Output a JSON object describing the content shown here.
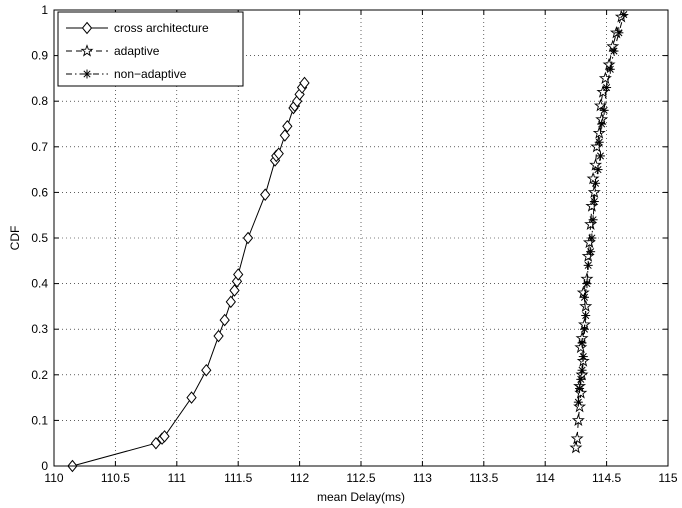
{
  "chart_data": {
    "type": "line",
    "title": "",
    "xlabel": "mean Delay(ms)",
    "ylabel": "CDF",
    "xlim": [
      110,
      115
    ],
    "ylim": [
      0,
      1
    ],
    "xticks": [
      110,
      110.5,
      111,
      111.5,
      112,
      112.5,
      113,
      113.5,
      114,
      114.5,
      115
    ],
    "xtick_labels": [
      "110",
      "110.5",
      "111",
      "111.5",
      "112",
      "112.5",
      "113",
      "113.5",
      "114",
      "114.5",
      "115"
    ],
    "yticks": [
      0,
      0.1,
      0.2,
      0.3,
      0.4,
      0.5,
      0.6,
      0.7,
      0.8,
      0.9,
      1
    ],
    "ytick_labels": [
      "0",
      "0.1",
      "0.2",
      "0.3",
      "0.4",
      "0.5",
      "0.6",
      "0.7",
      "0.8",
      "0.9",
      "1"
    ],
    "grid": true,
    "legend_position": "top-left",
    "series": [
      {
        "name": "cross architecture",
        "marker": "diamond",
        "line_style": "solid",
        "x": [
          110.15,
          110.83,
          110.88,
          110.9,
          111.12,
          111.24,
          111.34,
          111.39,
          111.44,
          111.47,
          111.49,
          111.5,
          111.58,
          111.72,
          111.8,
          111.81,
          111.83,
          111.88,
          111.9,
          111.95,
          111.96,
          111.98,
          112.0,
          112.02,
          112.04
        ],
        "y": [
          0.0,
          0.05,
          0.06,
          0.065,
          0.15,
          0.21,
          0.285,
          0.32,
          0.36,
          0.385,
          0.405,
          0.42,
          0.5,
          0.595,
          0.67,
          0.68,
          0.685,
          0.725,
          0.745,
          0.785,
          0.79,
          0.8,
          0.815,
          0.83,
          0.84
        ]
      },
      {
        "name": "adaptive",
        "marker": "star",
        "line_style": "dashed",
        "x": [
          114.25,
          114.26,
          114.27,
          114.28,
          114.29,
          114.28,
          114.3,
          114.31,
          114.29,
          114.3,
          114.32,
          114.33,
          114.31,
          114.34,
          114.35,
          114.36,
          114.37,
          114.38,
          114.4,
          114.39,
          114.41,
          114.42,
          114.44,
          114.46,
          114.45,
          114.47,
          114.49,
          114.52,
          114.55,
          114.58,
          114.62
        ],
        "y": [
          0.04,
          0.06,
          0.1,
          0.13,
          0.16,
          0.175,
          0.2,
          0.23,
          0.26,
          0.28,
          0.31,
          0.35,
          0.38,
          0.41,
          0.46,
          0.49,
          0.53,
          0.57,
          0.6,
          0.63,
          0.66,
          0.7,
          0.73,
          0.76,
          0.79,
          0.82,
          0.85,
          0.88,
          0.92,
          0.95,
          0.985
        ]
      },
      {
        "name": "non−adaptive",
        "marker": "asterisk",
        "line_style": "dashdot",
        "x": [
          114.27,
          114.28,
          114.29,
          114.3,
          114.31,
          114.3,
          114.32,
          114.33,
          114.32,
          114.34,
          114.35,
          114.37,
          114.38,
          114.39,
          114.4,
          114.41,
          114.43,
          114.45,
          114.44,
          114.46,
          114.48,
          114.5,
          114.53,
          114.56,
          114.6,
          114.64
        ],
        "y": [
          0.14,
          0.17,
          0.19,
          0.21,
          0.24,
          0.27,
          0.3,
          0.33,
          0.37,
          0.4,
          0.44,
          0.47,
          0.5,
          0.54,
          0.58,
          0.62,
          0.65,
          0.68,
          0.71,
          0.75,
          0.78,
          0.83,
          0.87,
          0.91,
          0.95,
          0.99
        ]
      }
    ]
  }
}
